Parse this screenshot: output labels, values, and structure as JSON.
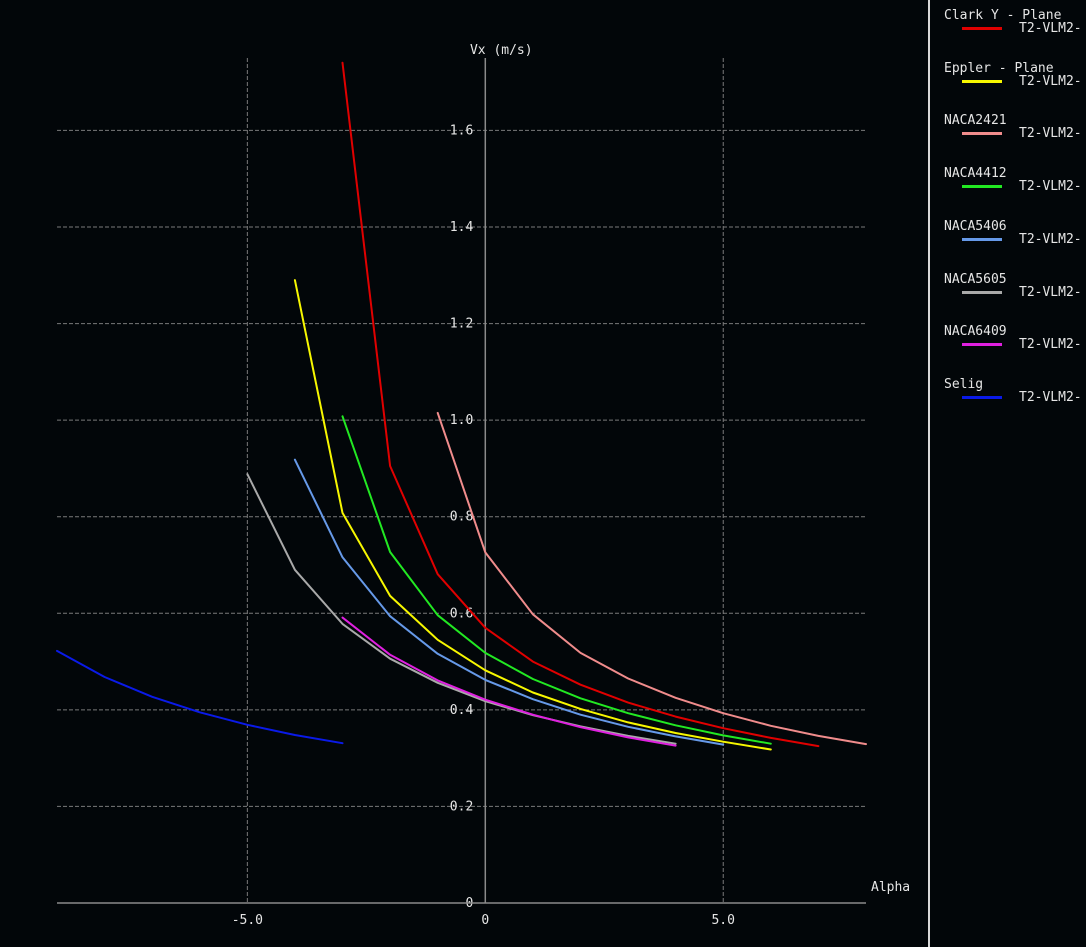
{
  "chart_data": {
    "type": "line",
    "xlabel": "Alpha",
    "ylabel": "Vx (m/s)",
    "xlim": [
      -9.0,
      8.0
    ],
    "ylim": [
      0,
      1.75
    ],
    "x_ticks": [
      -5.0,
      0,
      5.0
    ],
    "x_tick_labels": [
      "-5.0",
      "0",
      "5.0"
    ],
    "y_ticks": [
      0,
      0.2,
      0.4,
      0.6,
      0.8,
      1.0,
      1.2,
      1.4,
      1.6
    ],
    "y_tick_labels": [
      "0",
      "0.2",
      "0.4",
      "0.6",
      "0.8",
      "1.0",
      "1.2",
      "1.4",
      "1.6"
    ],
    "grid": true,
    "legend_position": "right",
    "series": [
      {
        "name": "Clark Y - Plane",
        "sub": "T2-VLM2-",
        "color": "#e00000",
        "x": [
          -3,
          -2,
          -1,
          0,
          1,
          2,
          3,
          4,
          5,
          6,
          7
        ],
        "y": [
          1.74,
          0.905,
          0.681,
          0.57,
          0.5,
          0.452,
          0.415,
          0.386,
          0.362,
          0.342,
          0.325
        ]
      },
      {
        "name": "Eppler - Plane",
        "sub": "T2-VLM2-",
        "color": "#f7f700",
        "x": [
          -4,
          -3,
          -2,
          -1,
          0,
          1,
          2,
          3,
          4,
          5,
          6
        ],
        "y": [
          1.29,
          0.808,
          0.636,
          0.545,
          0.482,
          0.436,
          0.402,
          0.374,
          0.352,
          0.334,
          0.318
        ]
      },
      {
        "name": "NACA2421",
        "sub": "T2-VLM2-",
        "color": "#f08c8c",
        "x": [
          -1,
          0,
          1,
          2,
          3,
          4,
          5,
          6,
          7,
          8
        ],
        "y": [
          1.015,
          0.726,
          0.598,
          0.518,
          0.465,
          0.425,
          0.393,
          0.367,
          0.346,
          0.329
        ]
      },
      {
        "name": "NACA4412",
        "sub": "T2-VLM2-",
        "color": "#22e822",
        "x": [
          -3,
          -2,
          -1,
          0,
          1,
          2,
          3,
          4,
          5,
          6
        ],
        "y": [
          1.008,
          0.727,
          0.596,
          0.518,
          0.464,
          0.424,
          0.393,
          0.368,
          0.347,
          0.33
        ]
      },
      {
        "name": "NACA5406",
        "sub": "T2-VLM2-",
        "color": "#6699e8",
        "x": [
          -4,
          -3,
          -2,
          -1,
          0,
          1,
          2,
          3,
          4,
          5
        ],
        "y": [
          0.918,
          0.716,
          0.594,
          0.516,
          0.462,
          0.422,
          0.39,
          0.365,
          0.345,
          0.328
        ]
      },
      {
        "name": "NACA5605",
        "sub": "T2-VLM2-",
        "color": "#a9a9a9",
        "x": [
          -5,
          -4,
          -3,
          -2,
          -1,
          0,
          1,
          2,
          3,
          4
        ],
        "y": [
          0.888,
          0.69,
          0.578,
          0.506,
          0.456,
          0.418,
          0.389,
          0.366,
          0.346,
          0.33
        ]
      },
      {
        "name": "NACA6409",
        "sub": "T2-VLM2-",
        "color": "#e020e0",
        "x": [
          -3,
          -2,
          -1,
          0,
          1,
          2,
          3,
          4
        ],
        "y": [
          0.591,
          0.514,
          0.461,
          0.421,
          0.39,
          0.364,
          0.343,
          0.326
        ]
      },
      {
        "name": "Selig",
        "sub": "T2-VLM2-",
        "color": "#0a1ae8",
        "x": [
          -9,
          -8,
          -7,
          -6,
          -5,
          -4,
          -3
        ],
        "y": [
          0.522,
          0.468,
          0.427,
          0.395,
          0.369,
          0.348,
          0.331
        ]
      }
    ]
  }
}
